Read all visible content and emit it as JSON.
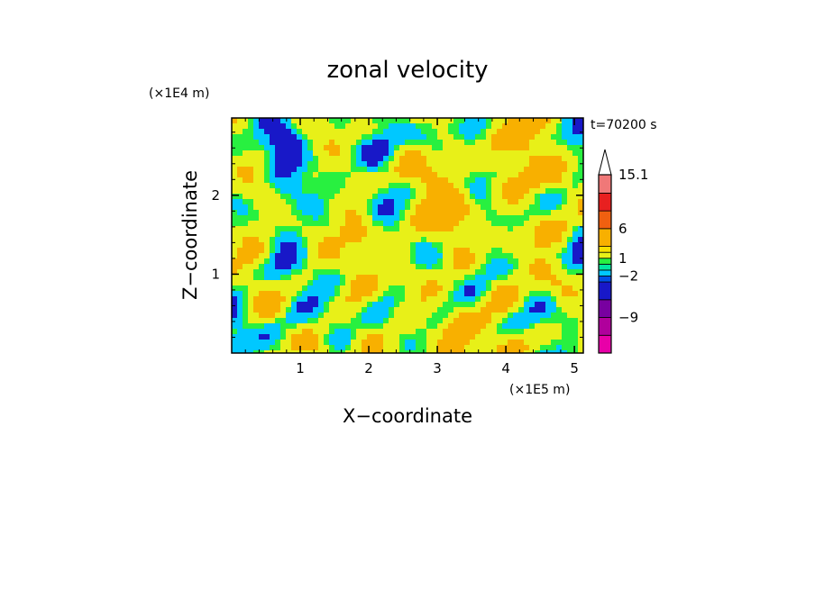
{
  "chart_data": {
    "type": "heatmap",
    "title": "zonal velocity",
    "xlabel": "X−coordinate",
    "ylabel": "Z−coordinate",
    "x_scale_label": "(×1E5 m)",
    "y_scale_label": "(×1E4 m)",
    "time_label": "t=70200 s",
    "xlim": [
      0,
      5.13
    ],
    "ylim": [
      0,
      2.98
    ],
    "x_ticks": [
      1,
      2,
      3,
      4,
      5
    ],
    "y_ticks": [
      1,
      2
    ],
    "x_tick_labels": [
      "1",
      "2",
      "3",
      "4",
      "5"
    ],
    "y_tick_labels": [
      "1",
      "2"
    ],
    "colorbar": {
      "levels": [
        -15,
        -12,
        -9,
        -6,
        -3,
        -2,
        -1,
        0,
        1,
        2,
        3,
        6,
        9,
        12,
        15.1
      ],
      "colors": [
        "#e800a8",
        "#b0009c",
        "#7800a0",
        "#1818c8",
        "#0050e6",
        "#00c8ff",
        "#00e8a0",
        "#28f040",
        "#e8f018",
        "#f8e000",
        "#f8b000",
        "#f06010",
        "#e82020",
        "#f07878",
        "#f8b8b8"
      ],
      "extend_max_color": "#ffffff",
      "labels": [
        {
          "value": 15.1,
          "text": "15.1"
        },
        {
          "value": 6,
          "text": "6"
        },
        {
          "value": 1,
          "text": "1"
        },
        {
          "value": -2,
          "text": "−2"
        },
        {
          "value": -9,
          "text": "−9"
        }
      ]
    },
    "field_classes": {
      "base": "#e8f018",
      "patches": [
        {
          "color": "#28f040",
          "share": 0.38
        },
        {
          "color": "#f8b000",
          "share": 0.1
        },
        {
          "color": "#00c8ff",
          "share": 0.07
        },
        {
          "color": "#1818c8",
          "share": 0.005
        }
      ]
    }
  }
}
